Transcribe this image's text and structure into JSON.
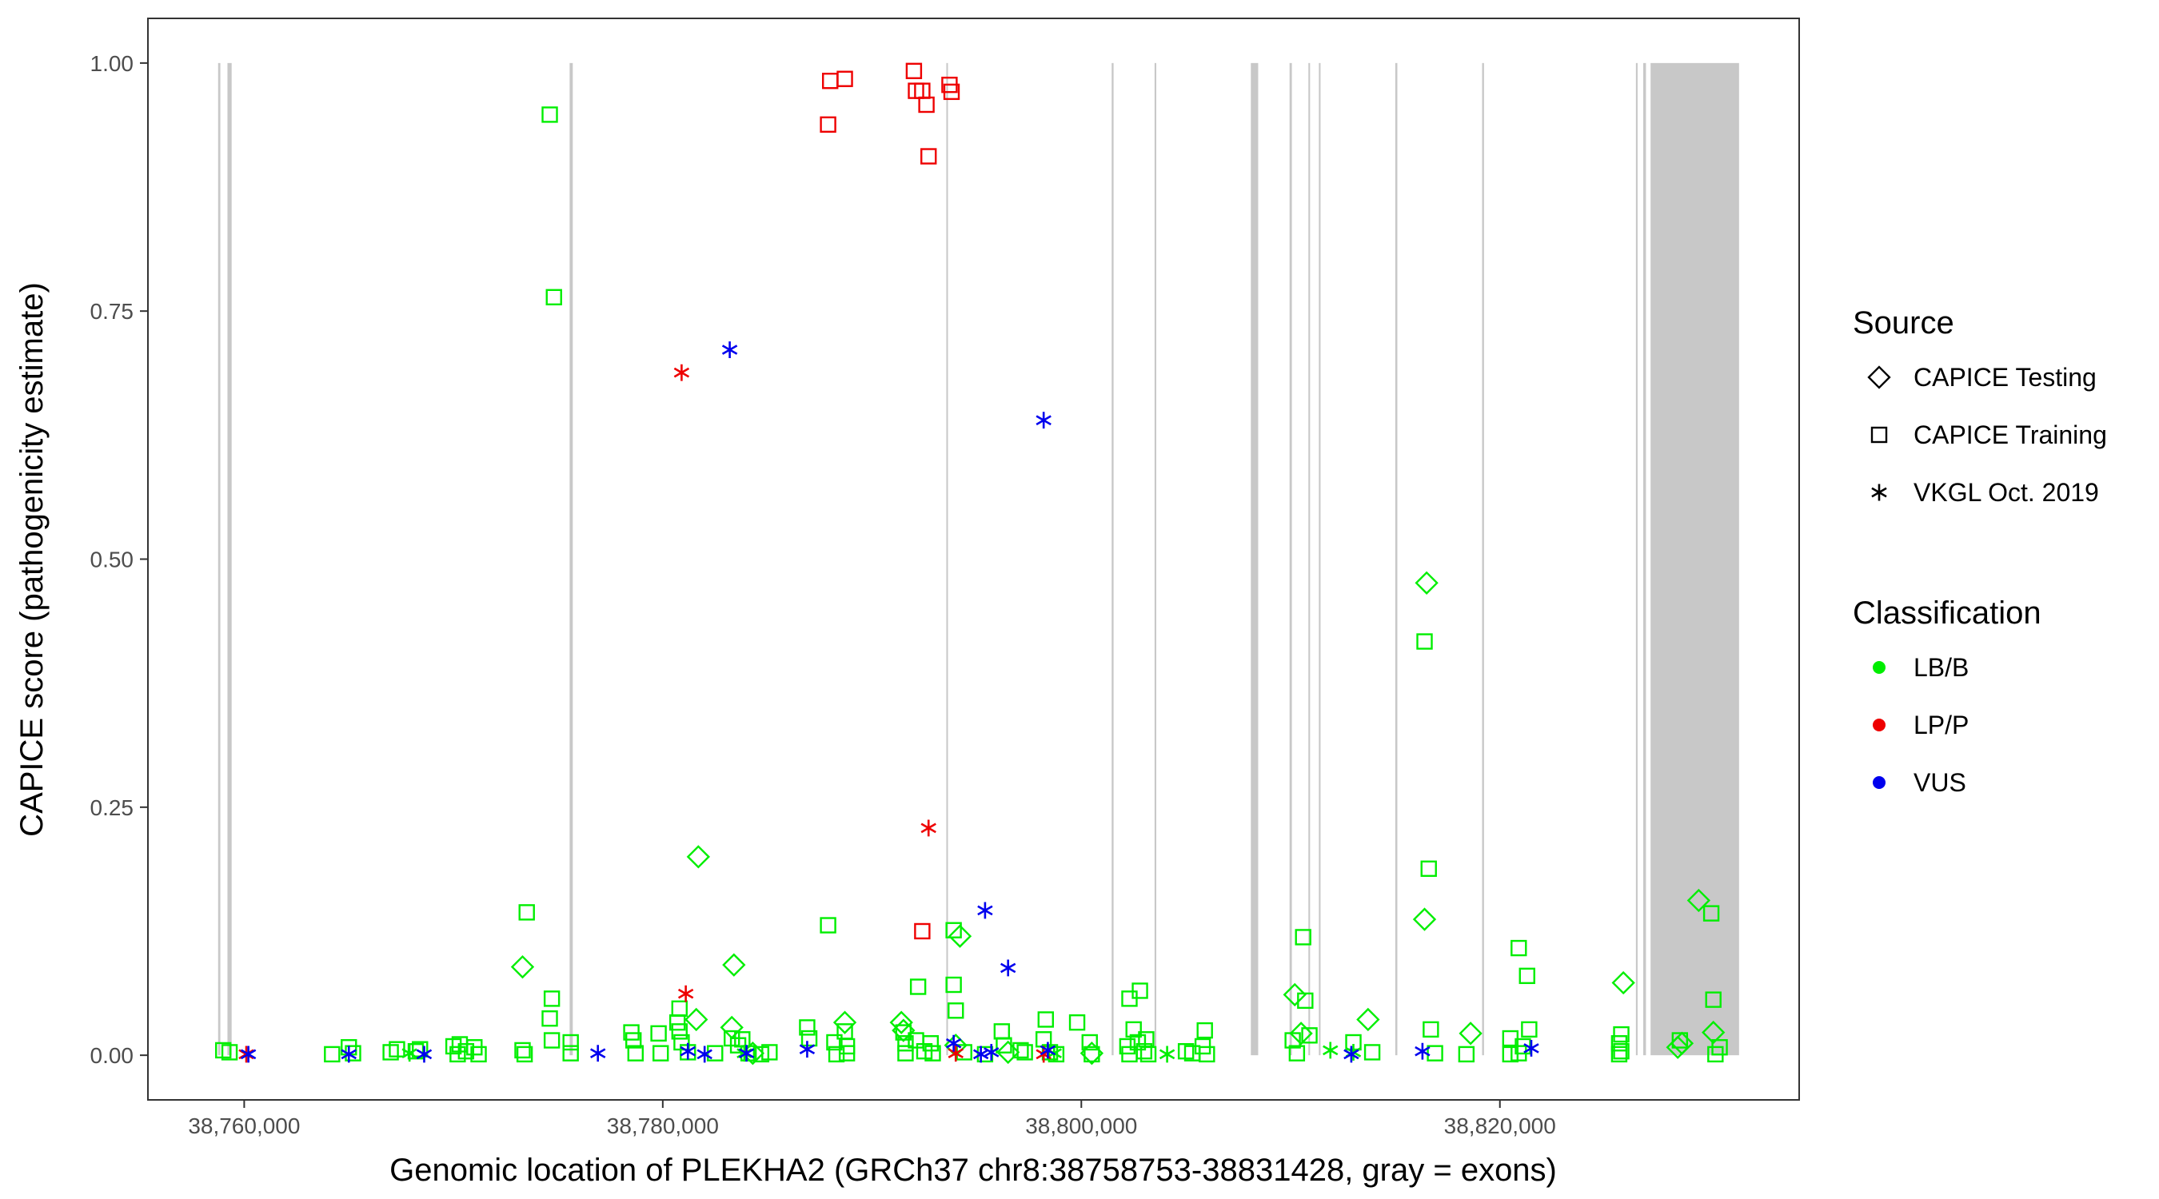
{
  "chart_data": {
    "type": "scatter",
    "title": "",
    "xlabel": "Genomic location of PLEKHA2 (GRCh37 chr8:38758753-38831428, gray = exons)",
    "ylabel": "CAPICE score (pathogenicity estimate)",
    "xlim": [
      38755400,
      38834300
    ],
    "ylim": [
      -0.045,
      1.045
    ],
    "x_ticks": [
      38760000,
      38780000,
      38800000,
      38820000
    ],
    "x_tick_labels": [
      "38,760,000",
      "38,780,000",
      "38,800,000",
      "38,820,000"
    ],
    "y_ticks": [
      0,
      0.25,
      0.5,
      0.75,
      1.0
    ],
    "y_tick_labels": [
      "0.00",
      "0.25",
      "0.50",
      "0.75",
      "1.00"
    ],
    "grid": false,
    "exons": [
      [
        38758753,
        38758860
      ],
      [
        38759200,
        38759400
      ],
      [
        38775550,
        38775700
      ],
      [
        38793550,
        38793620
      ],
      [
        38801450,
        38801540
      ],
      [
        38803500,
        38803580
      ],
      [
        38808100,
        38808450
      ],
      [
        38809950,
        38810060
      ],
      [
        38810850,
        38810930
      ],
      [
        38811350,
        38811430
      ],
      [
        38815000,
        38815100
      ],
      [
        38819150,
        38819240
      ],
      [
        38826500,
        38826580
      ],
      [
        38826850,
        38826980
      ],
      [
        38827200,
        38831428
      ]
    ],
    "legend": {
      "position": "right",
      "source_title": "Source",
      "source_items": [
        {
          "label": "CAPICE Testing",
          "shape": "diamond"
        },
        {
          "label": "CAPICE Training",
          "shape": "square"
        },
        {
          "label": "VKGL Oct. 2019",
          "shape": "asterisk"
        }
      ],
      "class_title": "Classification",
      "class_items": [
        {
          "label": "LB/B",
          "color": "#00ee00"
        },
        {
          "label": "LP/P",
          "color": "#ee0000"
        },
        {
          "label": "VUS",
          "color": "#0000ee"
        }
      ]
    },
    "series": [
      {
        "source": "CAPICE Testing",
        "shape": "diamond",
        "class": "LB/B",
        "color": "#00ee00",
        "points": [
          [
            38773300,
            0.089
          ],
          [
            38781700,
            0.2
          ],
          [
            38781600,
            0.036
          ],
          [
            38783400,
            0.091
          ],
          [
            38783300,
            0.028
          ],
          [
            38788700,
            0.033
          ],
          [
            38791400,
            0.033
          ],
          [
            38791500,
            0.025
          ],
          [
            38794200,
            0.12
          ],
          [
            38794000,
            0.01
          ],
          [
            38810200,
            0.061
          ],
          [
            38810500,
            0.022
          ],
          [
            38813700,
            0.036
          ],
          [
            38816500,
            0.476
          ],
          [
            38816400,
            0.137
          ],
          [
            38818600,
            0.022
          ],
          [
            38825900,
            0.073
          ],
          [
            38829500,
            0.156
          ],
          [
            38830200,
            0.023
          ],
          [
            38828700,
            0.012
          ],
          [
            38828500,
            0.008
          ],
          [
            38796500,
            0.003
          ],
          [
            38784300,
            0.002
          ],
          [
            38800500,
            0.002
          ]
        ]
      },
      {
        "source": "CAPICE Training",
        "shape": "square",
        "class": "LB/B",
        "color": "#00ee00",
        "points": [
          [
            38774600,
            0.948
          ],
          [
            38774800,
            0.764
          ],
          [
            38773500,
            0.144
          ],
          [
            38774700,
            0.057
          ],
          [
            38774600,
            0.037
          ],
          [
            38774700,
            0.015
          ],
          [
            38775600,
            0.013
          ],
          [
            38773300,
            0.005
          ],
          [
            38773400,
            0.001
          ],
          [
            38775600,
            0.002
          ],
          [
            38759000,
            0.005
          ],
          [
            38759300,
            0.003
          ],
          [
            38764200,
            0.001
          ],
          [
            38765000,
            0.008
          ],
          [
            38765200,
            0.002
          ],
          [
            38767000,
            0.003
          ],
          [
            38767300,
            0.006
          ],
          [
            38768200,
            0.004
          ],
          [
            38768400,
            0.006
          ],
          [
            38770000,
            0.009
          ],
          [
            38770300,
            0.011
          ],
          [
            38770600,
            0.004
          ],
          [
            38771000,
            0.008
          ],
          [
            38771200,
            0.001
          ],
          [
            38770200,
            0.001
          ],
          [
            38778500,
            0.023
          ],
          [
            38778600,
            0.015
          ],
          [
            38778700,
            0.002
          ],
          [
            38779800,
            0.022
          ],
          [
            38779900,
            0.002
          ],
          [
            38780800,
            0.047
          ],
          [
            38780700,
            0.033
          ],
          [
            38780800,
            0.024
          ],
          [
            38780900,
            0.013
          ],
          [
            38781200,
            0.003
          ],
          [
            38782500,
            0.002
          ],
          [
            38783300,
            0.017
          ],
          [
            38783600,
            0.01
          ],
          [
            38783800,
            0.016
          ],
          [
            38784100,
            0.002
          ],
          [
            38784700,
            0.001
          ],
          [
            38785100,
            0.003
          ],
          [
            38786900,
            0.028
          ],
          [
            38787000,
            0.017
          ],
          [
            38787900,
            0.131
          ],
          [
            38788200,
            0.013
          ],
          [
            38788700,
            0.024
          ],
          [
            38788800,
            0.009
          ],
          [
            38788300,
            0.001
          ],
          [
            38788800,
            0.002
          ],
          [
            38791500,
            0.023
          ],
          [
            38791600,
            0.012
          ],
          [
            38791600,
            0.002
          ],
          [
            38792200,
            0.069
          ],
          [
            38792100,
            0.015
          ],
          [
            38792500,
            0.004
          ],
          [
            38792800,
            0.012
          ],
          [
            38792900,
            0.002
          ],
          [
            38793900,
            0.126
          ],
          [
            38793900,
            0.071
          ],
          [
            38794000,
            0.045
          ],
          [
            38794400,
            0.003
          ],
          [
            38795400,
            0.001
          ],
          [
            38796200,
            0.024
          ],
          [
            38796300,
            0.01
          ],
          [
            38797100,
            0.005
          ],
          [
            38797300,
            0.003
          ],
          [
            38798300,
            0.036
          ],
          [
            38798200,
            0.016
          ],
          [
            38798500,
            0.003
          ],
          [
            38798800,
            0.001
          ],
          [
            38799800,
            0.033
          ],
          [
            38800400,
            0.013
          ],
          [
            38800500,
            0.001
          ],
          [
            38802300,
            0.057
          ],
          [
            38802800,
            0.065
          ],
          [
            38802500,
            0.026
          ],
          [
            38802200,
            0.009
          ],
          [
            38802700,
            0.013
          ],
          [
            38803000,
            0.004
          ],
          [
            38803100,
            0.016
          ],
          [
            38803200,
            0.001
          ],
          [
            38802300,
            0.001
          ],
          [
            38805000,
            0.004
          ],
          [
            38805300,
            0.002
          ],
          [
            38805900,
            0.025
          ],
          [
            38805800,
            0.009
          ],
          [
            38806000,
            0.001
          ],
          [
            38810100,
            0.015
          ],
          [
            38810600,
            0.119
          ],
          [
            38810700,
            0.055
          ],
          [
            38810900,
            0.02
          ],
          [
            38810300,
            0.002
          ],
          [
            38813000,
            0.013
          ],
          [
            38813900,
            0.003
          ],
          [
            38816400,
            0.417
          ],
          [
            38816600,
            0.188
          ],
          [
            38816700,
            0.026
          ],
          [
            38816900,
            0.002
          ],
          [
            38818400,
            0.001
          ],
          [
            38820500,
            0.017
          ],
          [
            38820900,
            0.108
          ],
          [
            38821300,
            0.08
          ],
          [
            38821400,
            0.026
          ],
          [
            38821100,
            0.009
          ],
          [
            38820900,
            0.002
          ],
          [
            38825800,
            0.021
          ],
          [
            38825700,
            0.012
          ],
          [
            38825800,
            0.004
          ],
          [
            38825700,
            0.001
          ],
          [
            38828600,
            0.015
          ],
          [
            38830100,
            0.143
          ],
          [
            38830200,
            0.056
          ],
          [
            38830500,
            0.008
          ],
          [
            38830300,
            0.001
          ],
          [
            38820500,
            0.001
          ]
        ]
      },
      {
        "source": "CAPICE Training",
        "shape": "square",
        "class": "LP/P",
        "color": "#ee0000",
        "points": [
          [
            38788000,
            0.982
          ],
          [
            38788700,
            0.984
          ],
          [
            38787900,
            0.938
          ],
          [
            38792000,
            0.992
          ],
          [
            38792100,
            0.972
          ],
          [
            38792400,
            0.972
          ],
          [
            38792600,
            0.958
          ],
          [
            38793700,
            0.978
          ],
          [
            38793800,
            0.971
          ],
          [
            38792700,
            0.906
          ],
          [
            38792400,
            0.125
          ]
        ]
      },
      {
        "source": "VKGL Oct. 2019",
        "shape": "asterisk",
        "class": "LB/B",
        "color": "#00ee00",
        "points": [
          [
            38767900,
            0.002
          ],
          [
            38783900,
            0.002
          ],
          [
            38804100,
            0.001
          ],
          [
            38811900,
            0.005
          ],
          [
            38813000,
            0.003
          ],
          [
            38798700,
            0.002
          ]
        ]
      },
      {
        "source": "VKGL Oct. 2019",
        "shape": "asterisk",
        "class": "LP/P",
        "color": "#ee0000",
        "points": [
          [
            38780900,
            0.688
          ],
          [
            38781100,
            0.062
          ],
          [
            38792700,
            0.229
          ],
          [
            38794000,
            0.002
          ],
          [
            38798200,
            0.001
          ],
          [
            38760100,
            0.001
          ]
        ]
      },
      {
        "source": "VKGL Oct. 2019",
        "shape": "asterisk",
        "class": "VUS",
        "color": "#0000ee",
        "points": [
          [
            38783200,
            0.711
          ],
          [
            38798200,
            0.64
          ],
          [
            38795400,
            0.146
          ],
          [
            38796500,
            0.088
          ],
          [
            38760200,
            0.001
          ],
          [
            38765000,
            0.001
          ],
          [
            38768600,
            0.001
          ],
          [
            38776900,
            0.002
          ],
          [
            38781200,
            0.004
          ],
          [
            38782000,
            0.001
          ],
          [
            38784000,
            0.002
          ],
          [
            38786900,
            0.006
          ],
          [
            38793900,
            0.012
          ],
          [
            38795200,
            0.001
          ],
          [
            38795700,
            0.003
          ],
          [
            38798400,
            0.005
          ],
          [
            38812900,
            0.001
          ],
          [
            38816300,
            0.004
          ],
          [
            38821500,
            0.007
          ]
        ]
      }
    ]
  }
}
